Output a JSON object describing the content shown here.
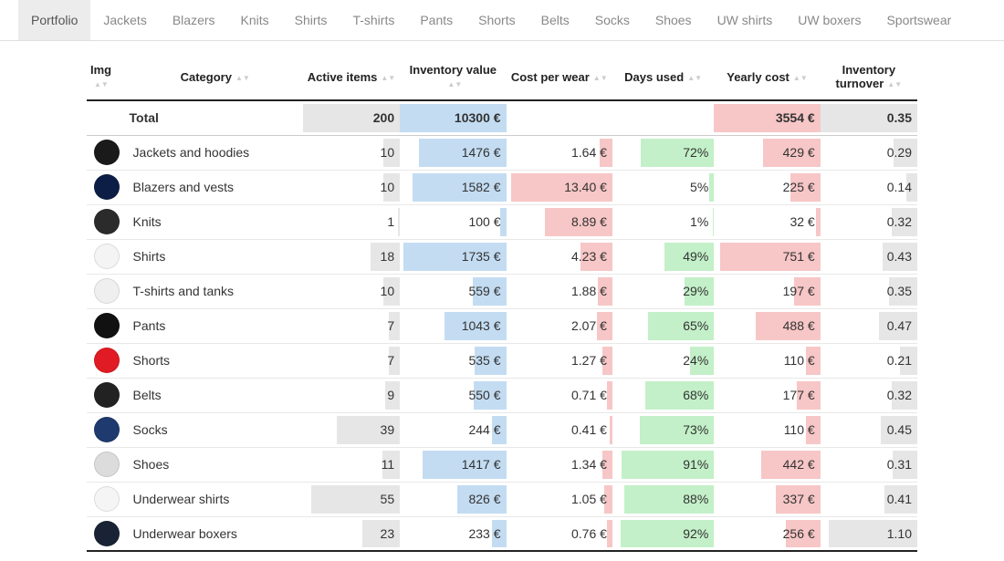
{
  "tabs": {
    "items": [
      "Portfolio",
      "Jackets",
      "Blazers",
      "Knits",
      "Shirts",
      "T-shirts",
      "Pants",
      "Shorts",
      "Belts",
      "Socks",
      "Shoes",
      "UW shirts",
      "UW boxers",
      "Sportswear"
    ],
    "active_index": 0
  },
  "columns": {
    "img": "Img",
    "category": "Category",
    "active": "Active items",
    "inventory": "Inventory value",
    "cpw": "Cost per wear",
    "days": "Days used",
    "yearly": "Yearly cost",
    "turnover": "Inventory turnover"
  },
  "colors": {
    "bar_grey": "#e6e6e6",
    "bar_blue": "#c3dcf2",
    "bar_red": "#f7c6c6",
    "bar_green": "#c3f0c8"
  },
  "scales": {
    "active_max": 60,
    "inventory_max": 1800,
    "cpw_max": 14,
    "days_max": 100,
    "yearly_max": 800,
    "turnover_max": 1.2
  },
  "total": {
    "label": "Total",
    "active": "200",
    "inventory": "10300 €",
    "yearly": "3554 €",
    "turnover": "0.35"
  },
  "rows": [
    {
      "thumb": "#1a1a1a",
      "category": "Jackets and hoodies",
      "active": "10",
      "active_n": 10,
      "inventory": "1476 €",
      "inventory_n": 1476,
      "cpw": "1.64 €",
      "cpw_n": 1.64,
      "days": "72%",
      "days_n": 72,
      "yearly": "429 €",
      "yearly_n": 429,
      "turnover": "0.29",
      "turnover_n": 0.29
    },
    {
      "thumb": "#0c1e46",
      "category": "Blazers and vests",
      "active": "10",
      "active_n": 10,
      "inventory": "1582 €",
      "inventory_n": 1582,
      "cpw": "13.40 €",
      "cpw_n": 13.4,
      "days": "5%",
      "days_n": 5,
      "yearly": "225 €",
      "yearly_n": 225,
      "turnover": "0.14",
      "turnover_n": 0.14
    },
    {
      "thumb": "#2b2b2b",
      "category": "Knits",
      "active": "1",
      "active_n": 1,
      "inventory": "100 €",
      "inventory_n": 100,
      "cpw": "8.89 €",
      "cpw_n": 8.89,
      "days": "1%",
      "days_n": 1,
      "yearly": "32 €",
      "yearly_n": 32,
      "turnover": "0.32",
      "turnover_n": 0.32
    },
    {
      "thumb": "#f4f4f4",
      "category": "Shirts",
      "active": "18",
      "active_n": 18,
      "inventory": "1735 €",
      "inventory_n": 1735,
      "cpw": "4.23 €",
      "cpw_n": 4.23,
      "days": "49%",
      "days_n": 49,
      "yearly": "751 €",
      "yearly_n": 751,
      "turnover": "0.43",
      "turnover_n": 0.43
    },
    {
      "thumb": "#efefef",
      "category": "T-shirts and tanks",
      "active": "10",
      "active_n": 10,
      "inventory": "559 €",
      "inventory_n": 559,
      "cpw": "1.88 €",
      "cpw_n": 1.88,
      "days": "29%",
      "days_n": 29,
      "yearly": "197 €",
      "yearly_n": 197,
      "turnover": "0.35",
      "turnover_n": 0.35
    },
    {
      "thumb": "#111111",
      "category": "Pants",
      "active": "7",
      "active_n": 7,
      "inventory": "1043 €",
      "inventory_n": 1043,
      "cpw": "2.07 €",
      "cpw_n": 2.07,
      "days": "65%",
      "days_n": 65,
      "yearly": "488 €",
      "yearly_n": 488,
      "turnover": "0.47",
      "turnover_n": 0.47
    },
    {
      "thumb": "#e01b24",
      "category": "Shorts",
      "active": "7",
      "active_n": 7,
      "inventory": "535 €",
      "inventory_n": 535,
      "cpw": "1.27 €",
      "cpw_n": 1.27,
      "days": "24%",
      "days_n": 24,
      "yearly": "110 €",
      "yearly_n": 110,
      "turnover": "0.21",
      "turnover_n": 0.21
    },
    {
      "thumb": "#222222",
      "category": "Belts",
      "active": "9",
      "active_n": 9,
      "inventory": "550 €",
      "inventory_n": 550,
      "cpw": "0.71 €",
      "cpw_n": 0.71,
      "days": "68%",
      "days_n": 68,
      "yearly": "177 €",
      "yearly_n": 177,
      "turnover": "0.32",
      "turnover_n": 0.32
    },
    {
      "thumb": "#1e3a6e",
      "category": "Socks",
      "active": "39",
      "active_n": 39,
      "inventory": "244 €",
      "inventory_n": 244,
      "cpw": "0.41 €",
      "cpw_n": 0.41,
      "days": "73%",
      "days_n": 73,
      "yearly": "110 €",
      "yearly_n": 110,
      "turnover": "0.45",
      "turnover_n": 0.45
    },
    {
      "thumb": "#dcdcdc",
      "category": "Shoes",
      "active": "11",
      "active_n": 11,
      "inventory": "1417 €",
      "inventory_n": 1417,
      "cpw": "1.34 €",
      "cpw_n": 1.34,
      "days": "91%",
      "days_n": 91,
      "yearly": "442 €",
      "yearly_n": 442,
      "turnover": "0.31",
      "turnover_n": 0.31
    },
    {
      "thumb": "#f5f5f5",
      "category": "Underwear shirts",
      "active": "55",
      "active_n": 55,
      "inventory": "826 €",
      "inventory_n": 826,
      "cpw": "1.05 €",
      "cpw_n": 1.05,
      "days": "88%",
      "days_n": 88,
      "yearly": "337 €",
      "yearly_n": 337,
      "turnover": "0.41",
      "turnover_n": 0.41
    },
    {
      "thumb": "#1a2336",
      "category": "Underwear boxers",
      "active": "23",
      "active_n": 23,
      "inventory": "233 €",
      "inventory_n": 233,
      "cpw": "0.76 €",
      "cpw_n": 0.76,
      "days": "92%",
      "days_n": 92,
      "yearly": "256 €",
      "yearly_n": 256,
      "turnover": "1.10",
      "turnover_n": 1.1
    }
  ]
}
